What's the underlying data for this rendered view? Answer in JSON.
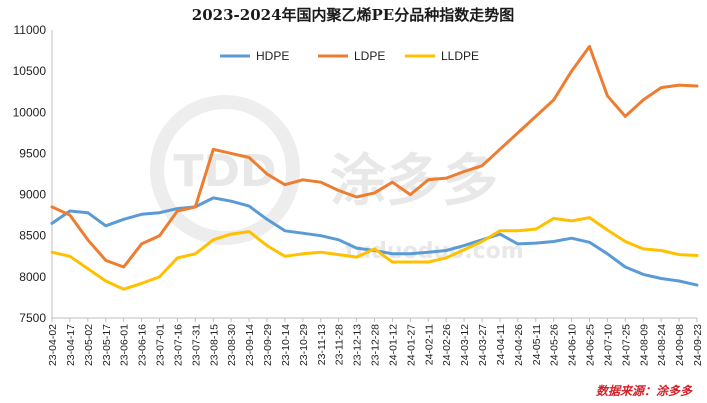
{
  "chart_data": {
    "type": "line",
    "title": "2023-2024年国内聚乙烯PE分品种指数走势图",
    "source": "数据来源：涂多多",
    "watermark": {
      "logo": "TDD",
      "name": "涂多多",
      "url": "tuduoduo.com"
    },
    "ylim": [
      7500,
      11000
    ],
    "yticks": [
      7500,
      8000,
      8500,
      9000,
      9500,
      10000,
      10500,
      11000
    ],
    "grid": false,
    "legend_position": "top",
    "x": [
      "23-04-02",
      "23-04-17",
      "23-05-02",
      "23-05-17",
      "23-06-01",
      "23-06-16",
      "23-07-01",
      "23-07-16",
      "23-07-31",
      "23-08-15",
      "23-08-30",
      "23-09-14",
      "23-09-29",
      "23-10-14",
      "23-10-29",
      "23-11-13",
      "23-11-28",
      "23-12-13",
      "23-12-28",
      "24-01-12",
      "24-01-27",
      "24-02-11",
      "24-02-26",
      "24-03-12",
      "24-03-27",
      "24-04-11",
      "24-04-26",
      "24-05-11",
      "24-05-26",
      "24-06-10",
      "24-06-25",
      "24-07-10",
      "24-07-25",
      "24-08-09",
      "24-08-24",
      "24-09-08",
      "24-09-23"
    ],
    "series": [
      {
        "name": "HDPE",
        "color": "#5b9bd5",
        "values": [
          8650,
          8800,
          8780,
          8620,
          8700,
          8760,
          8780,
          8830,
          8850,
          8960,
          8920,
          8860,
          8700,
          8560,
          8530,
          8500,
          8450,
          8350,
          8320,
          8280,
          8280,
          8300,
          8320,
          8380,
          8450,
          8520,
          8400,
          8410,
          8430,
          8470,
          8420,
          8280,
          8120,
          8030,
          7980,
          7950,
          7900
        ]
      },
      {
        "name": "LDPE",
        "color": "#ed7d31",
        "values": [
          8850,
          8750,
          8450,
          8200,
          8120,
          8400,
          8500,
          8800,
          8850,
          9550,
          9500,
          9450,
          9250,
          9120,
          9180,
          9150,
          9050,
          8970,
          9020,
          9150,
          9000,
          9180,
          9200,
          9280,
          9350,
          9550,
          9750,
          9950,
          10150,
          10500,
          10800,
          10200,
          9950,
          10150,
          10300,
          10330,
          10320
        ]
      },
      {
        "name": "LLDPE",
        "color": "#ffc000",
        "values": [
          8300,
          8250,
          8100,
          7950,
          7850,
          7920,
          8000,
          8230,
          8280,
          8450,
          8520,
          8550,
          8380,
          8250,
          8280,
          8300,
          8270,
          8240,
          8340,
          8180,
          8180,
          8180,
          8230,
          8330,
          8430,
          8560,
          8560,
          8580,
          8710,
          8680,
          8720,
          8570,
          8430,
          8340,
          8320,
          8270,
          8260
        ]
      }
    ]
  }
}
